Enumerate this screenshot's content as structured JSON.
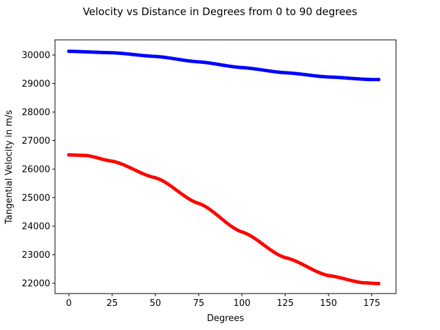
{
  "chart_data": {
    "type": "scatter",
    "title": "Velocity vs Distance in Degrees from 0 to 90 degrees",
    "xlabel": "Degrees",
    "ylabel": "Tangential Velocity in m/s",
    "xlim": [
      -8,
      189
    ],
    "ylim": [
      21640,
      30530
    ],
    "xticks": [
      0,
      25,
      50,
      75,
      100,
      125,
      150,
      175
    ],
    "yticks": [
      22000,
      23000,
      24000,
      25000,
      26000,
      27000,
      28000,
      29000,
      30000
    ],
    "grid": false,
    "x": {
      "start": 0,
      "end": 179,
      "step": 1
    },
    "series": [
      {
        "color": "#0000ff",
        "anchor_x": [
          0,
          25,
          50,
          75,
          100,
          125,
          150,
          175,
          179
        ],
        "anchor_y": [
          30130,
          30080,
          29950,
          29760,
          29560,
          29380,
          29230,
          29140,
          29140
        ]
      },
      {
        "color": "#ff0000",
        "anchor_x": [
          0,
          10,
          25,
          50,
          75,
          100,
          125,
          150,
          170,
          179
        ],
        "anchor_y": [
          26500,
          26480,
          26280,
          25700,
          24800,
          23800,
          22900,
          22270,
          22020,
          21990
        ]
      }
    ],
    "colors": {
      "axes": "#000000",
      "background": "#ffffff"
    }
  }
}
